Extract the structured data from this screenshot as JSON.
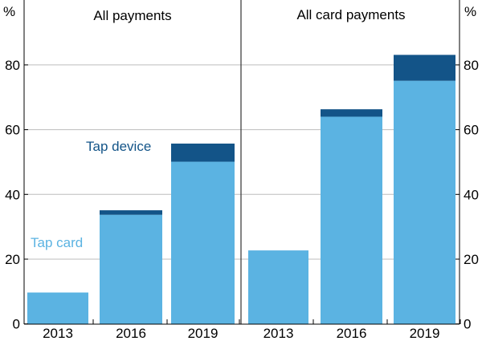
{
  "chart_data": [
    {
      "type": "bar",
      "stacked": true,
      "title": "All payments",
      "categories": [
        "2013",
        "2016",
        "2019"
      ],
      "series": [
        {
          "name": "Tap card",
          "color": "#5BB3E2",
          "values": [
            9.7,
            33.7,
            50.1
          ]
        },
        {
          "name": "Tap device",
          "color": "#135488",
          "values": [
            0,
            1.4,
            5.6
          ]
        }
      ],
      "ylabel": "%",
      "ylim": [
        0,
        90
      ],
      "yticks": [
        "0",
        "20",
        "40",
        "60",
        "80"
      ],
      "grid": true
    },
    {
      "type": "bar",
      "stacked": true,
      "title": "All card payments",
      "categories": [
        "2013",
        "2016",
        "2019"
      ],
      "series": [
        {
          "name": "Tap card",
          "color": "#5BB3E2",
          "values": [
            22.7,
            64.0,
            75.1
          ]
        },
        {
          "name": "Tap device",
          "color": "#135488",
          "values": [
            0,
            2.3,
            8.0
          ]
        }
      ],
      "ylabel": "%",
      "ylim": [
        0,
        90
      ],
      "yticks": [
        "0",
        "20",
        "40",
        "60",
        "80"
      ],
      "grid": true
    }
  ],
  "legend": {
    "tap_card": "Tap card",
    "tap_device": "Tap device"
  },
  "axis_unit": "%"
}
